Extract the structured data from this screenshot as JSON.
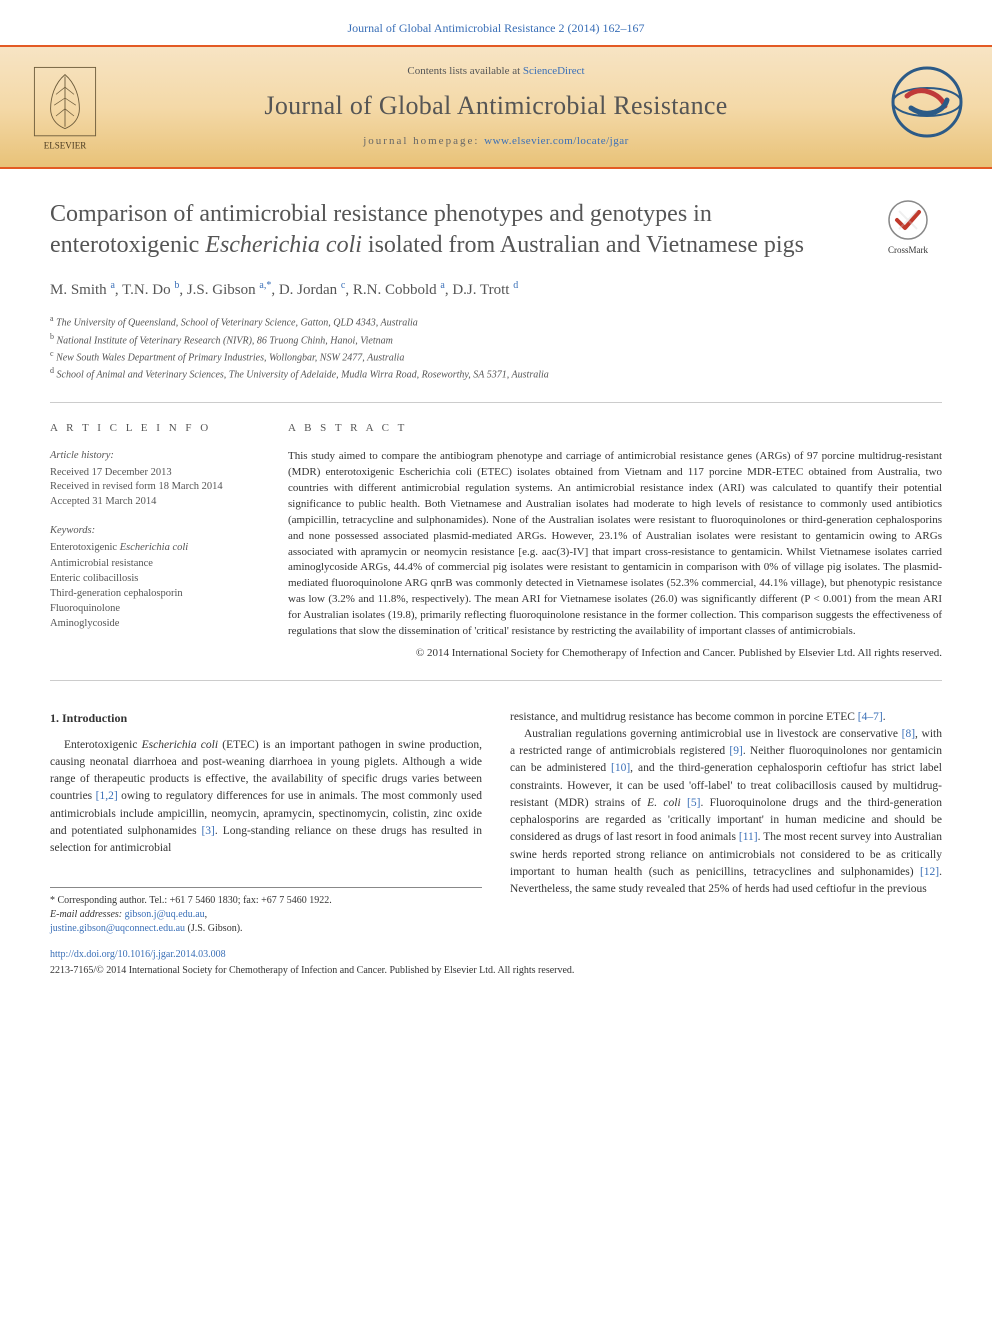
{
  "header": {
    "top_link": "Journal of Global Antimicrobial Resistance 2 (2014) 162–167",
    "contents_prefix": "Contents lists available at ",
    "contents_link": "ScienceDirect",
    "journal_name": "Journal of Global Antimicrobial Resistance",
    "homepage_prefix": "journal homepage: ",
    "homepage_url": "www.elsevier.com/locate/jgar",
    "publisher_label": "ELSEVIER"
  },
  "crossmark_label": "CrossMark",
  "title_parts": {
    "pre": "Comparison of antimicrobial resistance phenotypes and genotypes in enterotoxigenic ",
    "italic": "Escherichia coli",
    "post": " isolated from Australian and Vietnamese pigs"
  },
  "authors_html": "M. Smith <sup>a</sup>, T.N. Do <sup>b</sup>, J.S. Gibson <sup>a,*</sup>, D. Jordan <sup>c</sup>, R.N. Cobbold <sup>a</sup>, D.J. Trott <sup>d</sup>",
  "affiliations": [
    {
      "sup": "a",
      "text": "The University of Queensland, School of Veterinary Science, Gatton, QLD 4343, Australia"
    },
    {
      "sup": "b",
      "text": "National Institute of Veterinary Research (NIVR), 86 Truong Chinh, Hanoi, Vietnam"
    },
    {
      "sup": "c",
      "text": "New South Wales Department of Primary Industries, Wollongbar, NSW 2477, Australia"
    },
    {
      "sup": "d",
      "text": "School of Animal and Veterinary Sciences, The University of Adelaide, Mudla Wirra Road, Roseworthy, SA 5371, Australia"
    }
  ],
  "article_info": {
    "heading": "A R T I C L E   I N F O",
    "history_head": "Article history:",
    "received": "Received 17 December 2013",
    "revised": "Received in revised form 18 March 2014",
    "accepted": "Accepted 31 March 2014",
    "keywords_head": "Keywords:",
    "keywords": [
      "Enterotoxigenic Escherichia coli",
      "Antimicrobial resistance",
      "Enteric colibacillosis",
      "Third-generation cephalosporin",
      "Fluoroquinolone",
      "Aminoglycoside"
    ]
  },
  "abstract": {
    "heading": "A B S T R A C T",
    "text": "This study aimed to compare the antibiogram phenotype and carriage of antimicrobial resistance genes (ARGs) of 97 porcine multidrug-resistant (MDR) enterotoxigenic Escherichia coli (ETEC) isolates obtained from Vietnam and 117 porcine MDR-ETEC obtained from Australia, two countries with different antimicrobial regulation systems. An antimicrobial resistance index (ARI) was calculated to quantify their potential significance to public health. Both Vietnamese and Australian isolates had moderate to high levels of resistance to commonly used antibiotics (ampicillin, tetracycline and sulphonamides). None of the Australian isolates were resistant to fluoroquinolones or third-generation cephalosporins and none possessed associated plasmid-mediated ARGs. However, 23.1% of Australian isolates were resistant to gentamicin owing to ARGs associated with apramycin or neomycin resistance [e.g. aac(3)-IV] that impart cross-resistance to gentamicin. Whilst Vietnamese isolates carried aminoglycoside ARGs, 44.4% of commercial pig isolates were resistant to gentamicin in comparison with 0% of village pig isolates. The plasmid-mediated fluoroquinolone ARG qnrB was commonly detected in Vietnamese isolates (52.3% commercial, 44.1% village), but phenotypic resistance was low (3.2% and 11.8%, respectively). The mean ARI for Vietnamese isolates (26.0) was significantly different (P < 0.001) from the mean ARI for Australian isolates (19.8), primarily reflecting fluoroquinolone resistance in the former collection. This comparison suggests the effectiveness of regulations that slow the dissemination of 'critical' resistance by restricting the availability of important classes of antimicrobials.",
    "copyright": "© 2014 International Society for Chemotherapy of Infection and Cancer. Published by Elsevier Ltd. All rights reserved."
  },
  "section1": {
    "heading": "1. Introduction",
    "col1_p1": "Enterotoxigenic Escherichia coli (ETEC) is an important pathogen in swine production, causing neonatal diarrhoea and post-weaning diarrhoea in young piglets. Although a wide range of therapeutic products is effective, the availability of specific drugs varies between countries [1,2] owing to regulatory differences for use in animals. The most commonly used antimicrobials include ampicillin, neomycin, apramycin, spectinomycin, colistin, zinc oxide and potentiated sulphonamides [3]. Long-standing reliance on these drugs has resulted in selection for antimicrobial",
    "col2_p1": "resistance, and multidrug resistance has become common in porcine ETEC [4–7].",
    "col2_p2": "Australian regulations governing antimicrobial use in livestock are conservative [8], with a restricted range of antimicrobials registered [9]. Neither fluoroquinolones nor gentamicin can be administered [10], and the third-generation cephalosporin ceftiofur has strict label constraints. However, it can be used 'off-label' to treat colibacillosis caused by multidrug-resistant (MDR) strains of E. coli [5]. Fluoroquinolone drugs and the third-generation cephalosporins are regarded as 'critically important' in human medicine and should be considered as drugs of last resort in food animals [11]. The most recent survey into Australian swine herds reported strong reliance on antimicrobials not considered to be as critically important to human health (such as penicillins, tetracyclines and sulphonamides) [12]. Nevertheless, the same study revealed that 25% of herds had used ceftiofur in the previous"
  },
  "footnotes": {
    "corresponding": "* Corresponding author. Tel.: +61 7 5460 1830; fax: +67 7 5460 1922.",
    "email_label": "E-mail addresses: ",
    "email1": "gibson.j@uq.edu.au",
    "email2": "justine.gibson@uqconnect.edu.au",
    "email_suffix": " (J.S. Gibson).",
    "doi": "http://dx.doi.org/10.1016/j.jgar.2014.03.008",
    "copyright": "2213-7165/© 2014 International Society for Chemotherapy of Infection and Cancer. Published by Elsevier Ltd. All rights reserved."
  },
  "colors": {
    "link": "#3a6fb7",
    "border_orange": "#e35a24",
    "gradient_top": "#f7e4c4",
    "gradient_bottom": "#e8c278",
    "heading_grey": "#555555",
    "text": "#333333",
    "rule": "#cccccc"
  }
}
